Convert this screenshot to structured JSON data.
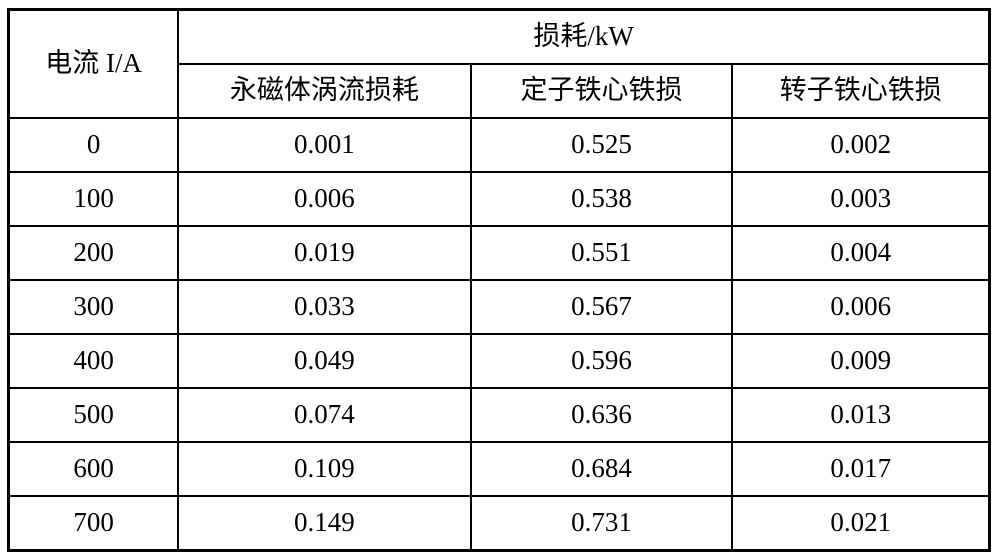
{
  "table": {
    "current_header": "电流 I/A",
    "loss_group_header": "损耗/kW",
    "sub_headers": [
      "永磁体涡流损耗",
      "定子铁心铁损",
      "转子铁心铁损"
    ],
    "rows": [
      {
        "current": "0",
        "values": [
          "0.001",
          "0.525",
          "0.002"
        ]
      },
      {
        "current": "100",
        "values": [
          "0.006",
          "0.538",
          "0.003"
        ]
      },
      {
        "current": "200",
        "values": [
          "0.019",
          "0.551",
          "0.004"
        ]
      },
      {
        "current": "300",
        "values": [
          "0.033",
          "0.567",
          "0.006"
        ]
      },
      {
        "current": "400",
        "values": [
          "0.049",
          "0.596",
          "0.009"
        ]
      },
      {
        "current": "500",
        "values": [
          "0.074",
          "0.636",
          "0.013"
        ]
      },
      {
        "current": "600",
        "values": [
          "0.109",
          "0.684",
          "0.017"
        ]
      },
      {
        "current": "700",
        "values": [
          "0.149",
          "0.731",
          "0.021"
        ]
      }
    ]
  },
  "chart_data": {
    "type": "table",
    "title": "损耗/kW",
    "x_header": "电流 I/A",
    "columns": [
      "永磁体涡流损耗",
      "定子铁心铁损",
      "转子铁心铁损"
    ],
    "x": [
      0,
      100,
      200,
      300,
      400,
      500,
      600,
      700
    ],
    "series": [
      {
        "name": "永磁体涡流损耗",
        "values": [
          0.001,
          0.006,
          0.019,
          0.033,
          0.049,
          0.074,
          0.109,
          0.149
        ]
      },
      {
        "name": "定子铁心铁损",
        "values": [
          0.525,
          0.538,
          0.551,
          0.567,
          0.596,
          0.636,
          0.684,
          0.731
        ]
      },
      {
        "name": "转子铁心铁损",
        "values": [
          0.002,
          0.003,
          0.004,
          0.006,
          0.009,
          0.013,
          0.017,
          0.021
        ]
      }
    ],
    "colors": {
      "border": "#000000",
      "text": "#000000",
      "background": "#ffffff"
    }
  }
}
